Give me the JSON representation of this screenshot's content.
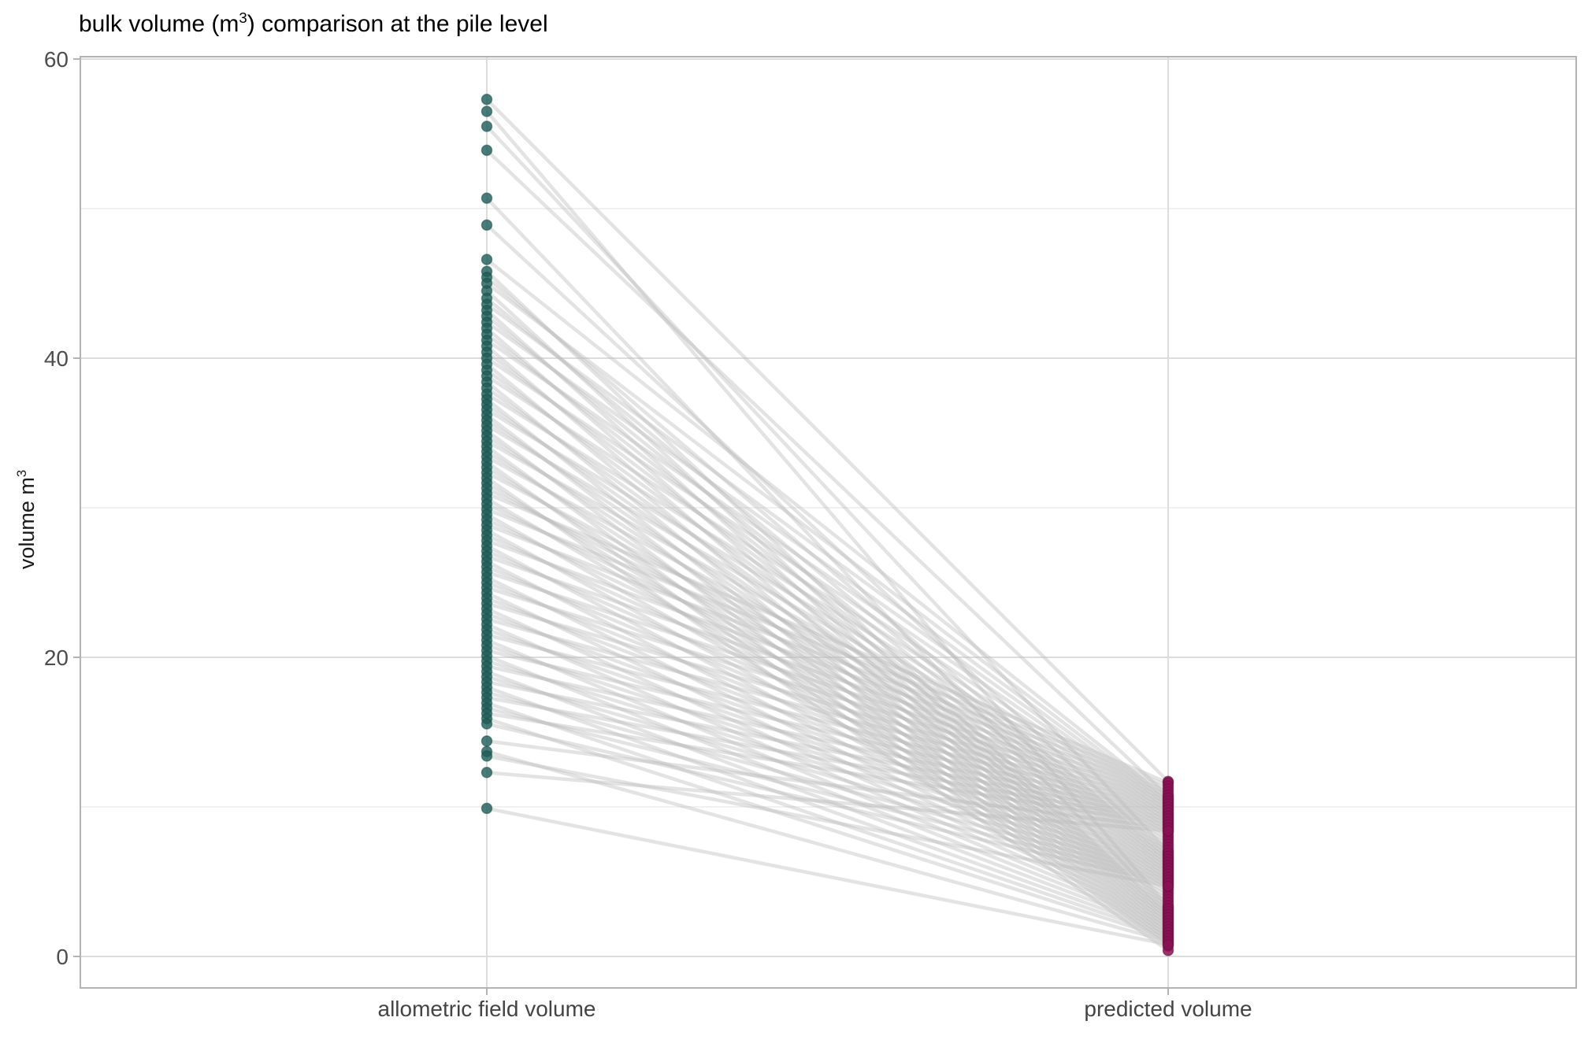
{
  "title": {
    "prefix": "bulk volume (m",
    "sup": "3",
    "suffix": ") comparison at the pile level"
  },
  "y_axis": {
    "label_prefix": "volume m",
    "label_sup": "3",
    "major_ticks": [
      0,
      20,
      40,
      60
    ],
    "minor_ticks": [
      10,
      30,
      50
    ]
  },
  "x_axis": {
    "categories": [
      "allometric field volume",
      "predicted volume"
    ]
  },
  "colors": {
    "field_point": "#1d5c57",
    "field_point_edge": "#16504b",
    "predicted_point": "#8a1253",
    "predicted_point_edge": "#6e0d42",
    "pair_line": "#bcbcbc",
    "grid_major": "#dcdcdc",
    "grid_minor": "#ebebeb",
    "panel_border": "#b3b3b3",
    "tick_mark": "#b3b3b3",
    "tick_text": "#4d4d4d",
    "title_text": "#000000"
  },
  "chart_data": {
    "type": "scatter",
    "subtype": "slopegraph-paired-points",
    "title": "bulk volume (m3) comparison at the pile level",
    "ylabel": "volume m3",
    "xlabel": "",
    "ylim": [
      0,
      60
    ],
    "yticks": [
      0,
      20,
      40,
      60
    ],
    "grid": "major+minor horizontal, vertical at categories",
    "legend": "none",
    "categories": [
      "allometric field volume",
      "predicted volume"
    ],
    "n_pairs": 96,
    "series": [
      {
        "name": "allometric field volume",
        "values": [
          57.3,
          56.5,
          55.5,
          53.9,
          50.7,
          48.9,
          46.6,
          45.8,
          45.4,
          45.0,
          44.5,
          44.0,
          43.6,
          43.2,
          42.8,
          42.4,
          42.0,
          41.6,
          41.2,
          40.8,
          40.4,
          40.0,
          39.6,
          39.2,
          38.8,
          38.4,
          38.0,
          37.6,
          37.25,
          36.9,
          36.55,
          36.2,
          35.85,
          35.5,
          35.15,
          34.8,
          34.45,
          34.1,
          33.75,
          33.4,
          33.05,
          32.7,
          32.35,
          32.0,
          31.65,
          31.3,
          30.95,
          30.6,
          30.25,
          29.9,
          29.55,
          29.2,
          28.85,
          28.5,
          28.15,
          27.8,
          27.45,
          27.1,
          26.75,
          26.4,
          26.05,
          25.7,
          25.35,
          25.0,
          24.65,
          24.3,
          23.95,
          23.6,
          23.25,
          22.9,
          22.55,
          22.2,
          21.85,
          21.5,
          21.15,
          20.8,
          20.45,
          20.1,
          19.75,
          19.4,
          19.05,
          18.7,
          18.35,
          18.0,
          17.65,
          17.3,
          16.95,
          16.6,
          16.25,
          15.9,
          15.55,
          14.4,
          13.7,
          13.4,
          12.3,
          9.9
        ]
      },
      {
        "name": "predicted volume",
        "values": [
          11.7,
          3.3,
          7.0,
          10.7,
          3.1,
          6.8,
          10.5,
          2.9,
          6.6,
          10.3,
          2.7,
          6.4,
          10.1,
          2.5,
          6.2,
          9.9,
          2.3,
          6.0,
          9.7,
          2.1,
          5.8,
          9.5,
          1.9,
          5.6,
          9.3,
          1.7,
          5.4,
          9.1,
          1.5,
          5.2,
          8.9,
          1.3,
          5.0,
          8.7,
          1.1,
          4.8,
          8.5,
          0.9,
          4.6,
          8.3,
          0.7,
          4.4,
          8.1,
          0.4,
          4.2,
          7.9,
          11.6,
          4.0,
          7.7,
          11.4,
          3.8,
          7.5,
          11.2,
          3.6,
          7.3,
          11.0,
          3.4,
          7.1,
          10.8,
          3.2,
          6.9,
          10.6,
          3.0,
          6.7,
          10.4,
          2.8,
          6.5,
          10.2,
          2.6,
          6.3,
          10.0,
          2.4,
          6.1,
          9.8,
          2.2,
          5.9,
          9.6,
          2.0,
          5.7,
          9.4,
          1.8,
          5.5,
          9.2,
          1.6,
          5.3,
          9.0,
          1.4,
          5.1,
          8.8,
          1.2,
          4.9,
          8.6,
          1.0,
          4.7,
          8.4,
          0.8
        ]
      }
    ]
  }
}
